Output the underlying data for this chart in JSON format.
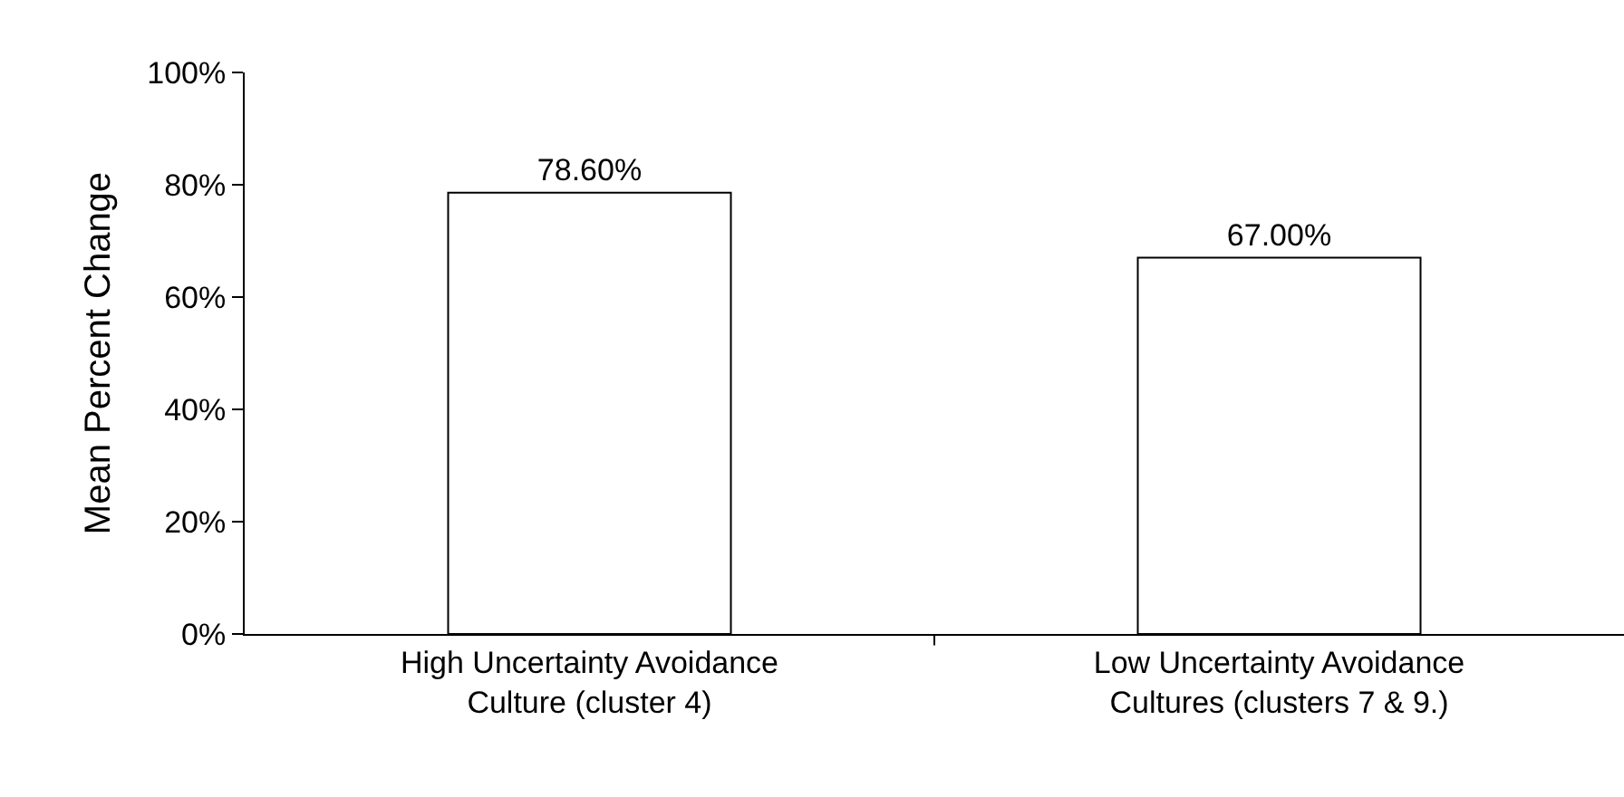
{
  "chart_data": {
    "type": "bar",
    "ylabel": "Mean Percent Change",
    "categories": [
      "High Uncertainty Avoidance Culture (cluster 4)",
      "Low Uncertainty Avoidance Cultures (clusters 7 & 9.)"
    ],
    "values": [
      78.6,
      67.0
    ],
    "value_labels": [
      "78.60%",
      "67.00%"
    ],
    "color": "#ffffff",
    "ylim": [
      0,
      100
    ],
    "yticks": [
      {
        "value": 0,
        "label": "0%"
      },
      {
        "value": 20,
        "label": "20%"
      },
      {
        "value": 40,
        "label": "40%"
      },
      {
        "value": 60,
        "label": "60%"
      },
      {
        "value": 80,
        "label": "80%"
      },
      {
        "value": 100,
        "label": "100%"
      }
    ],
    "grid": false
  }
}
